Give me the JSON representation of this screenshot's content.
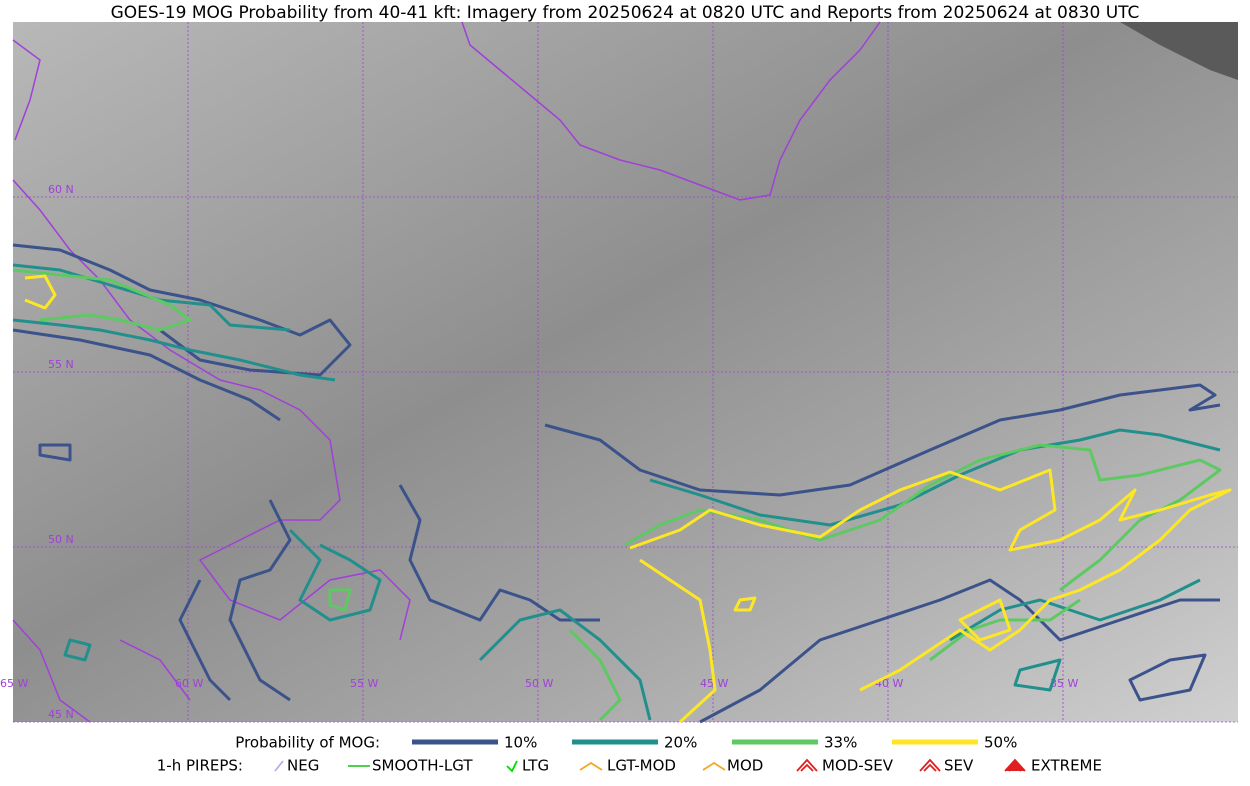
{
  "title": "GOES-19 MOG Probability from 40-41 kft: Imagery from 20250624 at 0820 UTC and Reports from 20250624 at 0830 UTC",
  "map": {
    "lat_labels": [
      "60 N",
      "55 N",
      "50 N",
      "45 N"
    ],
    "lon_labels": [
      "65 W",
      "60 W",
      "55 W",
      "50 W",
      "45 W",
      "40 W",
      "35 W"
    ]
  },
  "legend": {
    "probability": {
      "title": "Probability of MOG:",
      "items": [
        {
          "label": "10%",
          "color": "#3b528b"
        },
        {
          "label": "20%",
          "color": "#21908c"
        },
        {
          "label": "33%",
          "color": "#5ec962"
        },
        {
          "label": "50%",
          "color": "#fde725"
        }
      ]
    },
    "pireps": {
      "title": "1-h PIREPS:",
      "items": [
        {
          "label": "NEG",
          "color": "#b0b0f0"
        },
        {
          "label": "SMOOTH-LGT",
          "color": "#33cc33"
        },
        {
          "label": "LTG",
          "color": "#00dd00"
        },
        {
          "label": "LGT-MOD",
          "color": "#f5a623"
        },
        {
          "label": "MOD",
          "color": "#f5a623"
        },
        {
          "label": "MOD-SEV",
          "color": "#e02020"
        },
        {
          "label": "SEV",
          "color": "#e02020"
        },
        {
          "label": "EXTREME",
          "color": "#e02020"
        }
      ]
    }
  }
}
